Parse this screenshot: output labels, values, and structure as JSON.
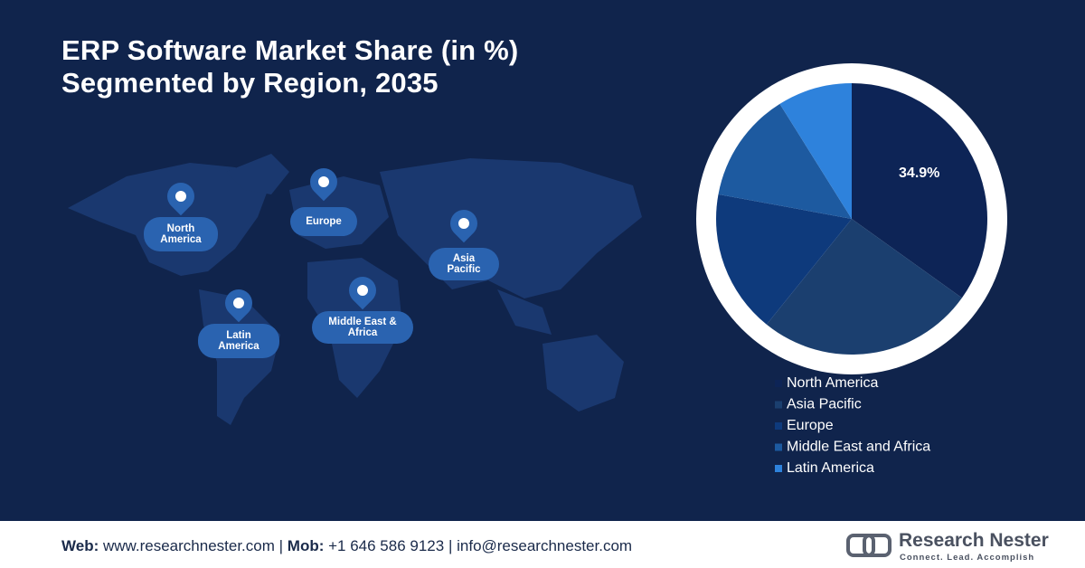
{
  "chart_data": {
    "type": "pie",
    "title": "ERP Software Market Share (in %)",
    "subtitle": "Segmented by Region, 2035",
    "categories": [
      "North America",
      "Asia Pacific",
      "Europe",
      "Middle East and Africa",
      "Latin America"
    ],
    "series": [
      {
        "values": [
          34.9,
          25.9,
          17.1,
          13.2,
          8.9
        ],
        "value_labels": [
          "34.9%",
          null,
          null,
          null,
          null
        ],
        "colors": [
          "#0d2456",
          "#1b3f6f",
          "#0e3a7c",
          "#1d5aa0",
          "#2e82dc"
        ]
      }
    ],
    "start_angle": 0,
    "direction": "clockwise",
    "legend": "bottom-right",
    "map_labels": [
      "North America",
      "Europe",
      "Asia Pacific",
      "Latin America",
      "Middle East & Africa"
    ]
  },
  "footer": {
    "web_label": "Web:",
    "web": "www.researchnester.com",
    "sep1": "|",
    "mob_label": "Mob:",
    "mob": "+1 646 586 9123",
    "sep2": "|",
    "email": "info@researchnester.com",
    "brand": "Research Nester",
    "tagline": "Connect. Lead. Accomplish"
  }
}
